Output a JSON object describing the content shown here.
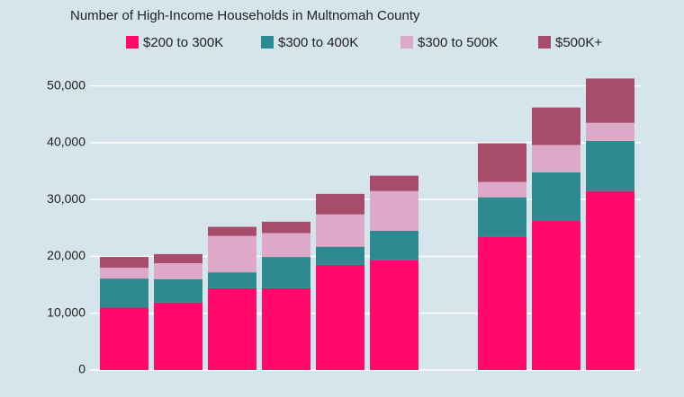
{
  "chart_data": {
    "type": "stacked-bar",
    "title": "Number of High-Income Households in Multnomah County",
    "categories": [
      null,
      null,
      null,
      null,
      null,
      null,
      null,
      null,
      null,
      null
    ],
    "series": [
      {
        "name": "$200 to 300K",
        "color": "#ff0a6a",
        "values": [
          11000,
          11900,
          14400,
          14400,
          18500,
          19300,
          null,
          23400,
          26300,
          31500
        ]
      },
      {
        "name": "$300 to 400K",
        "color": "#2e8a90",
        "values": [
          5100,
          4100,
          2800,
          5500,
          3200,
          5200,
          null,
          7000,
          8500,
          8800
        ]
      },
      {
        "name": "$300 to 500K",
        "color": "#dcaac8",
        "values": [
          1900,
          2800,
          6400,
          4200,
          5700,
          7000,
          null,
          2700,
          4800,
          3200
        ]
      },
      {
        "name": "$500K+",
        "color": "#a84c6c",
        "values": [
          1900,
          1600,
          1600,
          2000,
          3600,
          2700,
          null,
          6800,
          6600,
          7800
        ]
      }
    ],
    "ylim": [
      0,
      55000
    ],
    "yticks": [
      0,
      {
        "value": 10000,
        "label": "10,000"
      },
      {
        "value": 20000,
        "label": "20,000"
      },
      {
        "value": 30000,
        "label": "30,000"
      },
      {
        "value": 40000,
        "label": "40,000"
      },
      {
        "value": 50000,
        "label": "50,000"
      }
    ],
    "grid": true
  }
}
